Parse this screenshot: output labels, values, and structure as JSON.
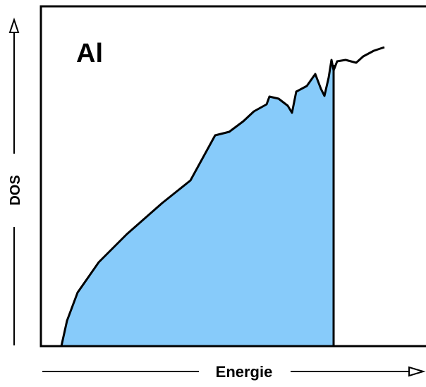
{
  "panel": {
    "label": "Al"
  },
  "axes": {
    "y_label": "DOS",
    "x_label": "Energie"
  }
}
